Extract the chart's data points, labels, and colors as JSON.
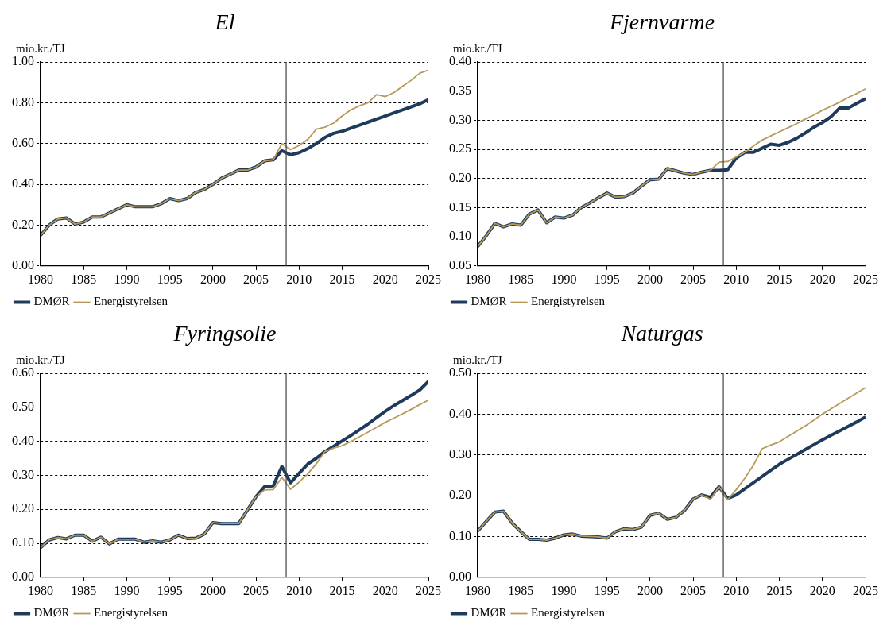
{
  "chart_data": [
    {
      "type": "line",
      "title": "El",
      "ylabel": "mio.kr./TJ",
      "x": [
        1980,
        1981,
        1982,
        1983,
        1984,
        1985,
        1986,
        1987,
        1988,
        1989,
        1990,
        1991,
        1992,
        1993,
        1994,
        1995,
        1996,
        1997,
        1998,
        1999,
        2000,
        2001,
        2002,
        2003,
        2004,
        2005,
        2006,
        2007,
        2008,
        2009,
        2010,
        2011,
        2012,
        2013,
        2014,
        2015,
        2016,
        2017,
        2018,
        2019,
        2020,
        2021,
        2022,
        2023,
        2024,
        2025
      ],
      "xlim": [
        1980,
        2025
      ],
      "xticks": [
        1980,
        1985,
        1990,
        1995,
        2000,
        2005,
        2010,
        2015,
        2020,
        2025
      ],
      "ylim": [
        0,
        1
      ],
      "yticks": [
        {
          "value": 0,
          "label": "0.00"
        },
        {
          "value": 0.2,
          "label": "0.20"
        },
        {
          "value": 0.4,
          "label": "0.40"
        },
        {
          "value": 0.6,
          "label": "0.60"
        },
        {
          "value": 0.8,
          "label": "0.80"
        },
        {
          "value": 1,
          "label": "1.00"
        }
      ],
      "grid": "y",
      "legend": "bottom",
      "ref_lines": [
        {
          "axis": "x",
          "value": 2008.5,
          "color": "#404040"
        }
      ],
      "series": [
        {
          "name": "DMØR",
          "color": "#1f3b5c",
          "values": [
            0.15,
            0.2,
            0.23,
            0.235,
            0.205,
            0.215,
            0.24,
            0.24,
            0.26,
            0.28,
            0.3,
            0.29,
            0.29,
            0.29,
            0.305,
            0.33,
            0.32,
            0.33,
            0.36,
            0.375,
            0.4,
            0.43,
            0.45,
            0.47,
            0.47,
            0.485,
            0.515,
            0.52,
            0.565,
            0.545,
            0.555,
            0.575,
            0.6,
            0.63,
            0.65,
            0.66,
            0.675,
            0.69,
            0.705,
            0.72,
            0.735,
            0.75,
            0.765,
            0.78,
            0.795,
            0.815
          ]
        },
        {
          "name": "Energistyrelsen",
          "color": "#b8995a",
          "values": [
            0.15,
            0.2,
            0.23,
            0.235,
            0.205,
            0.215,
            0.24,
            0.24,
            0.26,
            0.28,
            0.3,
            0.29,
            0.29,
            0.29,
            0.305,
            0.33,
            0.32,
            0.33,
            0.36,
            0.375,
            0.4,
            0.43,
            0.45,
            0.47,
            0.47,
            0.485,
            0.515,
            0.52,
            0.6,
            0.57,
            0.59,
            0.62,
            0.67,
            0.68,
            0.7,
            0.735,
            0.765,
            0.785,
            0.8,
            0.84,
            0.83,
            0.85,
            0.88,
            0.91,
            0.945,
            0.96
          ]
        }
      ]
    },
    {
      "type": "line",
      "title": "Fjernvarme",
      "ylabel": "mio.kr./TJ",
      "x": [
        1980,
        1981,
        1982,
        1983,
        1984,
        1985,
        1986,
        1987,
        1988,
        1989,
        1990,
        1991,
        1992,
        1993,
        1994,
        1995,
        1996,
        1997,
        1998,
        1999,
        2000,
        2001,
        2002,
        2003,
        2004,
        2005,
        2006,
        2007,
        2008,
        2009,
        2010,
        2011,
        2012,
        2013,
        2014,
        2015,
        2016,
        2017,
        2018,
        2019,
        2020,
        2021,
        2022,
        2023,
        2024,
        2025
      ],
      "xlim": [
        1980,
        2025
      ],
      "xticks": [
        1980,
        1985,
        1990,
        1995,
        2000,
        2005,
        2010,
        2015,
        2020,
        2025
      ],
      "ylim": [
        0.05,
        0.4
      ],
      "yticks": [
        {
          "value": 0.05,
          "label": "0.05"
        },
        {
          "value": 0.1,
          "label": "0.10"
        },
        {
          "value": 0.15,
          "label": "0.15"
        },
        {
          "value": 0.2,
          "label": "0.20"
        },
        {
          "value": 0.25,
          "label": "0.25"
        },
        {
          "value": 0.3,
          "label": "0.30"
        },
        {
          "value": 0.35,
          "label": "0.35"
        },
        {
          "value": 0.4,
          "label": "0.40"
        }
      ],
      "grid": "y",
      "legend": "bottom",
      "ref_lines": [
        {
          "axis": "x",
          "value": 2008.5,
          "color": "#404040"
        }
      ],
      "series": [
        {
          "name": "DMØR",
          "color": "#1f3b5c",
          "values": [
            0.083,
            0.102,
            0.123,
            0.117,
            0.122,
            0.12,
            0.139,
            0.146,
            0.124,
            0.134,
            0.132,
            0.137,
            0.15,
            0.158,
            0.167,
            0.175,
            0.168,
            0.169,
            0.175,
            0.187,
            0.198,
            0.199,
            0.217,
            0.213,
            0.209,
            0.207,
            0.211,
            0.214,
            0.214,
            0.215,
            0.235,
            0.245,
            0.245,
            0.252,
            0.259,
            0.257,
            0.262,
            0.269,
            0.278,
            0.288,
            0.296,
            0.306,
            0.321,
            0.321,
            0.329,
            0.337
          ]
        },
        {
          "name": "Energistyrelsen",
          "color": "#b8995a",
          "values": [
            0.083,
            0.102,
            0.123,
            0.117,
            0.122,
            0.12,
            0.139,
            0.146,
            0.124,
            0.134,
            0.132,
            0.137,
            0.15,
            0.158,
            0.167,
            0.175,
            0.168,
            0.169,
            0.175,
            0.187,
            0.198,
            0.199,
            0.217,
            0.213,
            0.209,
            0.207,
            0.211,
            0.214,
            0.228,
            0.229,
            0.237,
            0.245,
            0.256,
            0.266,
            0.273,
            0.28,
            0.287,
            0.294,
            0.302,
            0.309,
            0.317,
            0.324,
            0.331,
            0.339,
            0.346,
            0.354
          ]
        }
      ]
    },
    {
      "type": "line",
      "title": "Fyringsolie",
      "ylabel": "mio.kr./TJ",
      "x": [
        1980,
        1981,
        1982,
        1983,
        1984,
        1985,
        1986,
        1987,
        1988,
        1989,
        1990,
        1991,
        1992,
        1993,
        1994,
        1995,
        1996,
        1997,
        1998,
        1999,
        2000,
        2001,
        2002,
        2003,
        2004,
        2005,
        2006,
        2007,
        2008,
        2009,
        2010,
        2011,
        2012,
        2013,
        2014,
        2015,
        2016,
        2017,
        2018,
        2019,
        2020,
        2021,
        2022,
        2023,
        2024,
        2025
      ],
      "xlim": [
        1980,
        2025
      ],
      "xticks": [
        1980,
        1985,
        1990,
        1995,
        2000,
        2005,
        2010,
        2015,
        2020,
        2025
      ],
      "ylim": [
        0,
        0.6
      ],
      "yticks": [
        {
          "value": 0,
          "label": "0.00"
        },
        {
          "value": 0.1,
          "label": "0.10"
        },
        {
          "value": 0.2,
          "label": "0.20"
        },
        {
          "value": 0.3,
          "label": "0.30"
        },
        {
          "value": 0.4,
          "label": "0.40"
        },
        {
          "value": 0.5,
          "label": "0.50"
        },
        {
          "value": 0.6,
          "label": "0.60"
        }
      ],
      "grid": "y",
      "legend": "bottom",
      "ref_lines": [
        {
          "axis": "x",
          "value": 2008.5,
          "color": "#404040"
        }
      ],
      "series": [
        {
          "name": "DMØR",
          "color": "#1f3b5c",
          "values": [
            0.087,
            0.11,
            0.117,
            0.113,
            0.124,
            0.124,
            0.106,
            0.118,
            0.098,
            0.112,
            0.112,
            0.112,
            0.103,
            0.107,
            0.103,
            0.11,
            0.124,
            0.114,
            0.115,
            0.127,
            0.161,
            0.158,
            0.158,
            0.158,
            0.198,
            0.237,
            0.267,
            0.269,
            0.326,
            0.278,
            0.306,
            0.333,
            0.35,
            0.37,
            0.385,
            0.401,
            0.417,
            0.434,
            0.451,
            0.47,
            0.488,
            0.505,
            0.52,
            0.535,
            0.551,
            0.576
          ]
        },
        {
          "name": "Energistyrelsen",
          "color": "#b8995a",
          "values": [
            0.087,
            0.11,
            0.117,
            0.113,
            0.124,
            0.124,
            0.106,
            0.118,
            0.098,
            0.112,
            0.112,
            0.112,
            0.103,
            0.107,
            0.103,
            0.11,
            0.124,
            0.114,
            0.115,
            0.127,
            0.161,
            0.158,
            0.158,
            0.158,
            0.198,
            0.237,
            0.257,
            0.258,
            0.294,
            0.259,
            0.28,
            0.304,
            0.334,
            0.37,
            0.38,
            0.387,
            0.399,
            0.413,
            0.427,
            0.441,
            0.456,
            0.468,
            0.481,
            0.494,
            0.508,
            0.521
          ]
        }
      ]
    },
    {
      "type": "line",
      "title": "Naturgas",
      "ylabel": "mio.kr./TJ",
      "x": [
        1980,
        1981,
        1982,
        1983,
        1984,
        1985,
        1986,
        1987,
        1988,
        1989,
        1990,
        1991,
        1992,
        1993,
        1994,
        1995,
        1996,
        1997,
        1998,
        1999,
        2000,
        2001,
        2002,
        2003,
        2004,
        2005,
        2006,
        2007,
        2008,
        2009,
        2010,
        2011,
        2012,
        2013,
        2014,
        2015,
        2016,
        2017,
        2018,
        2019,
        2020,
        2021,
        2022,
        2023,
        2024,
        2025
      ],
      "xlim": [
        1980,
        2025
      ],
      "xticks": [
        1980,
        1985,
        1990,
        1995,
        2000,
        2005,
        2010,
        2015,
        2020,
        2025
      ],
      "ylim": [
        0,
        0.5
      ],
      "yticks": [
        {
          "value": 0,
          "label": "0.00"
        },
        {
          "value": 0.1,
          "label": "0.10"
        },
        {
          "value": 0.2,
          "label": "0.20"
        },
        {
          "value": 0.3,
          "label": "0.30"
        },
        {
          "value": 0.4,
          "label": "0.40"
        },
        {
          "value": 0.5,
          "label": "0.50"
        }
      ],
      "grid": "y",
      "legend": "bottom",
      "ref_lines": [
        {
          "axis": "x",
          "value": 2008.5,
          "color": "#404040"
        }
      ],
      "series": [
        {
          "name": "DMØR",
          "color": "#1f3b5c",
          "values": [
            0.113,
            0.137,
            0.16,
            0.162,
            0.133,
            0.112,
            0.093,
            0.093,
            0.091,
            0.096,
            0.104,
            0.106,
            0.101,
            0.1,
            0.099,
            0.096,
            0.112,
            0.119,
            0.117,
            0.123,
            0.152,
            0.157,
            0.142,
            0.147,
            0.164,
            0.192,
            0.202,
            0.196,
            0.222,
            0.193,
            0.202,
            0.217,
            0.232,
            0.247,
            0.262,
            0.277,
            0.289,
            0.301,
            0.313,
            0.325,
            0.337,
            0.348,
            0.359,
            0.37,
            0.381,
            0.393
          ]
        },
        {
          "name": "Energistyrelsen",
          "color": "#b8995a",
          "values": [
            0.113,
            0.137,
            0.16,
            0.162,
            0.133,
            0.112,
            0.093,
            0.093,
            0.091,
            0.096,
            0.104,
            0.106,
            0.101,
            0.1,
            0.099,
            0.096,
            0.112,
            0.119,
            0.117,
            0.123,
            0.152,
            0.157,
            0.142,
            0.147,
            0.164,
            0.192,
            0.202,
            0.191,
            0.222,
            0.19,
            0.215,
            0.243,
            0.275,
            0.315,
            0.324,
            0.332,
            0.345,
            0.358,
            0.371,
            0.385,
            0.4,
            0.413,
            0.426,
            0.439,
            0.452,
            0.465
          ]
        }
      ]
    }
  ]
}
